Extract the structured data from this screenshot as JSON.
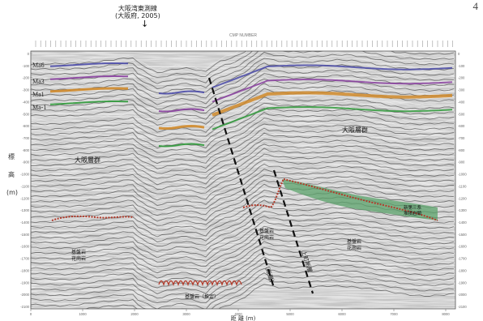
{
  "page_number": "4",
  "survey_line": {
    "line1": "大阪湾東測線",
    "line2": "(大阪府, 2005)"
  },
  "header_text": "CMP NUMBER",
  "horizons": [
    "Ma6",
    "Ma3",
    "Ma1",
    "Ma-1"
  ],
  "labels": {
    "osaka_group_left": "大阪層群",
    "osaka_group_right": "大阪層群",
    "basement_left": "基盤岩\n花崗岩",
    "basement_mid": "基盤岩\n花崗岩",
    "basement_right": "基盤岩\n花崗岩",
    "sedimentary_right": "新第三系\n堆積岩類",
    "fault_left": "〔断層〕",
    "fault_right": "上町断層",
    "basement_bottom": "基盤岩（推定）"
  },
  "axes": {
    "left_label": "標\n高\n(m)",
    "bottom_label": "距 離 (m)",
    "depth_ticks": [
      "0",
      "-100",
      "-200",
      "-300",
      "-400",
      "-500",
      "-600",
      "-700",
      "-800",
      "-900",
      "-1000",
      "-1100",
      "-1200",
      "-1300",
      "-1400",
      "-1500",
      "-1600",
      "-1700",
      "-1800",
      "-1900",
      "-2000",
      "-2100"
    ],
    "distance_ticks": [
      "0",
      "1000",
      "2000",
      "3000",
      "4000",
      "5000",
      "6000",
      "7000",
      "8000"
    ]
  },
  "colors": {
    "ma6": "#4a4aa8",
    "ma3": "#8a3fa0",
    "ma1": "#d08a2a",
    "ma_1": "#2f9a3a",
    "basement": "#b23a2a",
    "sediment_fill": "#5aa26a"
  }
}
